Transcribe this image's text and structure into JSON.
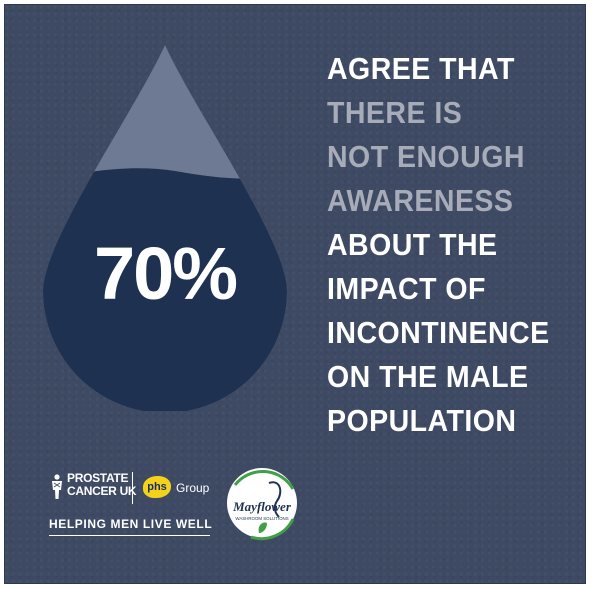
{
  "stat": {
    "value": "70%"
  },
  "headline": {
    "lines": [
      {
        "text": "AGREE THAT",
        "tone": "white"
      },
      {
        "text": "THERE IS",
        "tone": "grey"
      },
      {
        "text": "NOT ENOUGH",
        "tone": "grey"
      },
      {
        "text": "AWARENESS",
        "tone": "grey"
      },
      {
        "text": "ABOUT THE",
        "tone": "white"
      },
      {
        "text": "IMPACT OF",
        "tone": "white"
      },
      {
        "text": "INCONTINENCE",
        "tone": "white"
      },
      {
        "text": "ON THE MALE",
        "tone": "white"
      },
      {
        "text": "POPULATION",
        "tone": "white"
      }
    ]
  },
  "logos": {
    "prostate_cancer_uk": {
      "line1": "PROSTATE",
      "line2": "CANCER UK",
      "icon": "man-figure-icon"
    },
    "phs_group": {
      "badge": "phs",
      "label": "Group"
    },
    "tagline": "HELPING MEN LIVE WELL",
    "mayflower": {
      "name": "Mayflower",
      "sub": "WASHROOM SOLUTIONS"
    }
  },
  "colors": {
    "background": "#3e4a63",
    "drop_light": "#6e7a93",
    "drop_dark": "#1f3150",
    "text_white": "#ffffff",
    "text_grey": "#a7acb8",
    "phs_yellow": "#f5d21a",
    "mayflower_green": "#3fa047"
  }
}
